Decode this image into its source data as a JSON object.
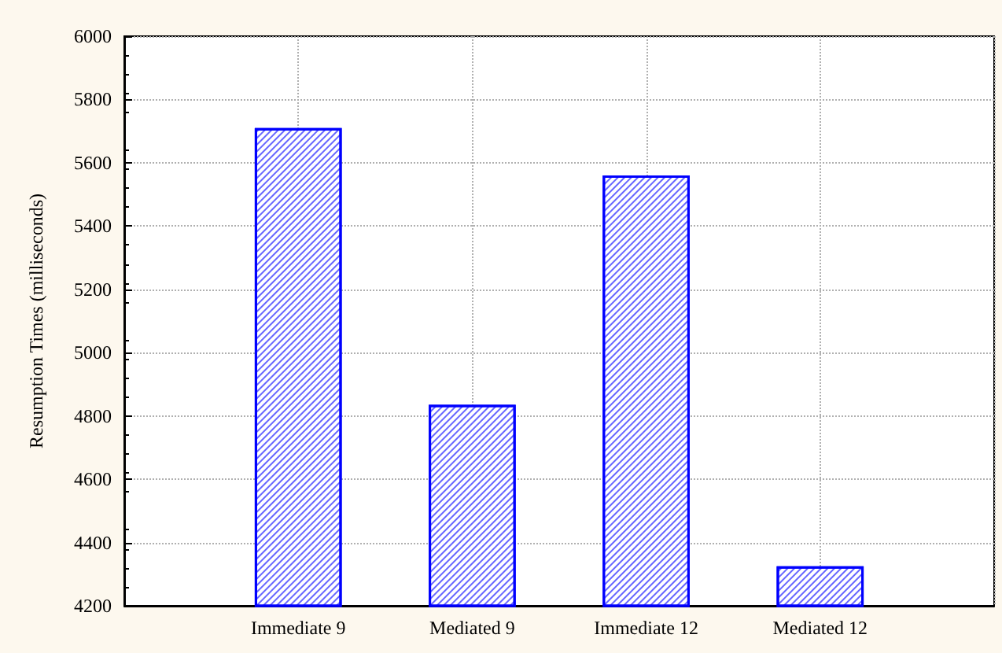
{
  "chart_data": {
    "type": "bar",
    "ylabel": "Resumption Times (milliseconds)",
    "categories": [
      null,
      "Immediate 9",
      "Mediated 9",
      "Immediate 12",
      "Mediated 12",
      null
    ],
    "values": [
      null,
      5710,
      4835,
      5560,
      4325,
      null
    ],
    "color": "#0000ff",
    "ylim": [
      4200,
      6000
    ],
    "yticks": [
      4200,
      4400,
      4600,
      4800,
      5000,
      5200,
      5400,
      5600,
      5800,
      6000
    ],
    "grid": true
  }
}
